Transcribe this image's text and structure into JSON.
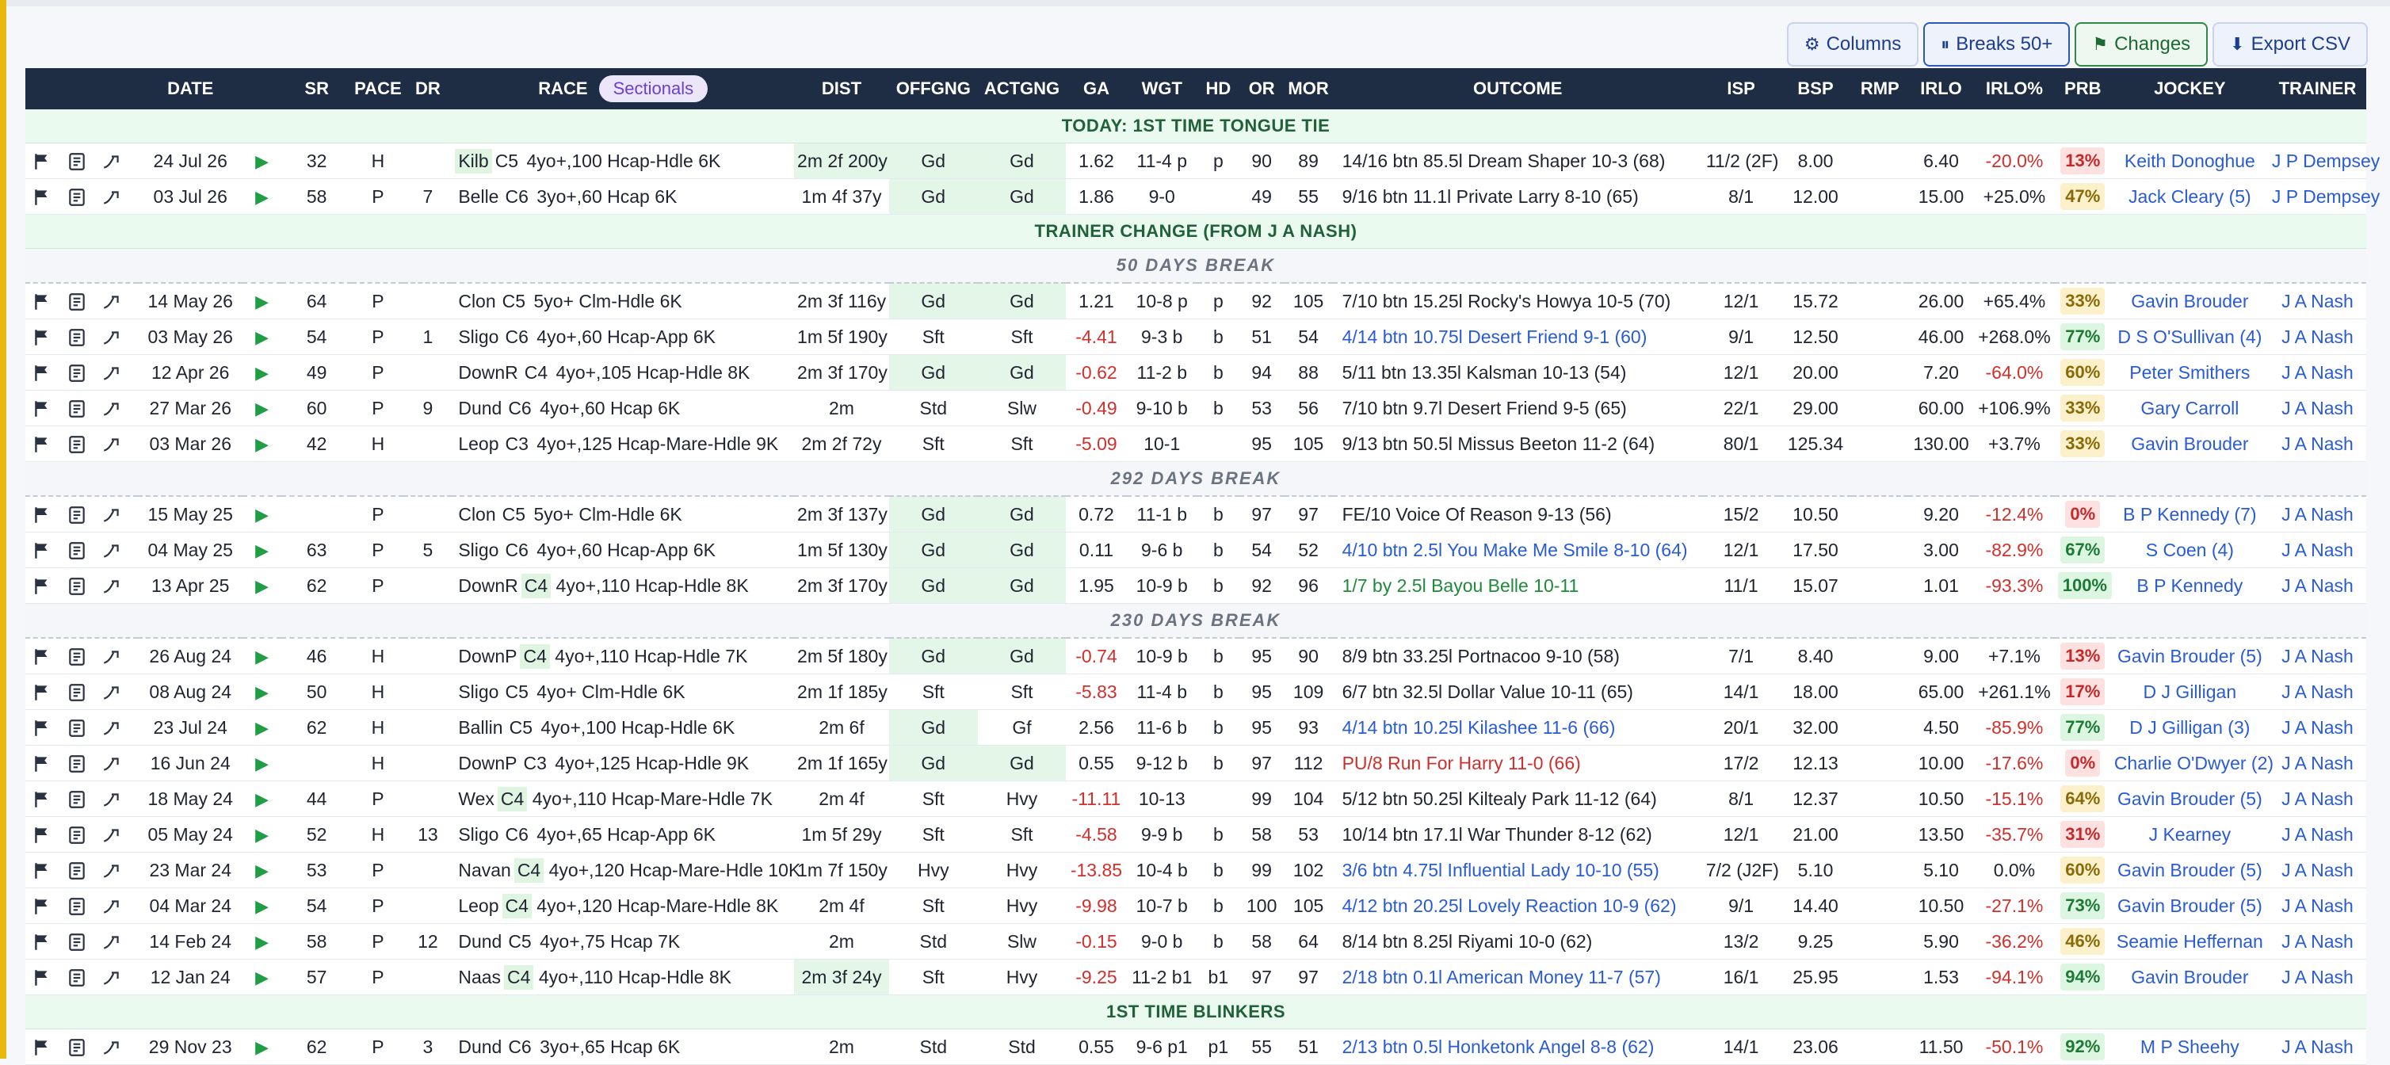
{
  "toolbar": {
    "columns": "Columns",
    "breaks": "Breaks 50+",
    "changes": "Changes",
    "export": "Export CSV"
  },
  "headers": {
    "date": "DATE",
    "sr": "SR",
    "pace": "PACE",
    "dr": "DR",
    "race": "RACE",
    "sectionals": "Sectionals",
    "dist": "DIST",
    "offgng": "OFFGNG",
    "actgng": "ACTGNG",
    "ga": "GA",
    "wgt": "WGT",
    "hd": "HD",
    "or": "OR",
    "mor": "MOR",
    "outcome": "OUTCOME",
    "isp": "ISP",
    "bsp": "BSP",
    "rmp": "RMP",
    "irlo": "IRLO",
    "irlo_pct": "IRLO%",
    "prb": "PRB",
    "jockey": "JOCKEY",
    "trainer": "TRAINER"
  },
  "rows": [
    {
      "kind": "note",
      "text": "TODAY: 1ST TIME TONGUE TIE"
    },
    {
      "kind": "race",
      "date": "24 Jul 26",
      "sr": "32",
      "pace": "H",
      "dr": "",
      "course": "Kilb",
      "cls": "C5",
      "race": "4yo+,100 Hcap-Hdle 6K",
      "course_hl": true,
      "cls_hl": false,
      "dist": "2m 2f 200y",
      "dist_hl": true,
      "off": "Gd",
      "off_hl": true,
      "act": "Gd",
      "act_hl": true,
      "ga": "1.62",
      "ga_neg": false,
      "wgt": "11-4 p",
      "hd": "p",
      "or": "90",
      "mor": "89",
      "outcome": "14/16 btn 85.5l Dream Shaper 10-3 (68)",
      "oc": "plain",
      "isp": "11/2 (2F)",
      "bsp": "8.00",
      "rmp": "",
      "irlo": "6.40",
      "irlo_pct": "-20.0%",
      "irlo_neg": true,
      "prb": "13%",
      "prb_c": "red",
      "jockey": "Keith Donoghue",
      "trainer": "J P Dempsey"
    },
    {
      "kind": "race",
      "date": "03 Jul 26",
      "sr": "58",
      "pace": "P",
      "dr": "7",
      "course": "Belle",
      "cls": "C6",
      "race": "3yo+,60 Hcap 6K",
      "course_hl": false,
      "cls_hl": false,
      "dist": "1m 4f 37y",
      "dist_hl": false,
      "off": "Gd",
      "off_hl": true,
      "act": "Gd",
      "act_hl": true,
      "ga": "1.86",
      "ga_neg": false,
      "wgt": "9-0",
      "hd": "",
      "or": "49",
      "mor": "55",
      "outcome": "9/16 btn 11.1l Private Larry 8-10 (65)",
      "oc": "plain",
      "isp": "8/1",
      "bsp": "12.00",
      "rmp": "",
      "irlo": "15.00",
      "irlo_pct": "+25.0%",
      "irlo_neg": false,
      "prb": "47%",
      "prb_c": "yel",
      "jockey": "Jack Cleary (5)",
      "trainer": "J P Dempsey"
    },
    {
      "kind": "note",
      "text": "TRAINER CHANGE (FROM J A NASH)"
    },
    {
      "kind": "break",
      "text": "50 DAYS BREAK"
    },
    {
      "kind": "race",
      "dash": true,
      "date": "14 May 26",
      "sr": "64",
      "pace": "P",
      "dr": "",
      "course": "Clon",
      "cls": "C5",
      "race": "5yo+ Clm-Hdle 6K",
      "course_hl": false,
      "cls_hl": false,
      "dist": "2m 3f 116y",
      "dist_hl": false,
      "off": "Gd",
      "off_hl": true,
      "act": "Gd",
      "act_hl": true,
      "ga": "1.21",
      "ga_neg": false,
      "wgt": "10-8 p",
      "hd": "p",
      "or": "92",
      "mor": "105",
      "outcome": "7/10 btn 15.25l Rocky's Howya 10-5 (70)",
      "oc": "plain",
      "isp": "12/1",
      "bsp": "15.72",
      "rmp": "",
      "irlo": "26.00",
      "irlo_pct": "+65.4%",
      "irlo_neg": false,
      "prb": "33%",
      "prb_c": "yel",
      "jockey": "Gavin Brouder",
      "trainer": "J A Nash"
    },
    {
      "kind": "race",
      "date": "03 May 26",
      "sr": "54",
      "pace": "P",
      "dr": "1",
      "course": "Sligo",
      "cls": "C6",
      "race": "4yo+,60 Hcap-App 6K",
      "course_hl": false,
      "cls_hl": false,
      "dist": "1m 5f 190y",
      "dist_hl": false,
      "off": "Sft",
      "off_hl": false,
      "act": "Sft",
      "act_hl": false,
      "ga": "-4.41",
      "ga_neg": true,
      "wgt": "9-3 b",
      "hd": "b",
      "or": "51",
      "mor": "54",
      "outcome": "4/14 btn 10.75l Desert Friend 9-1 (60)",
      "oc": "blue",
      "isp": "9/1",
      "bsp": "12.50",
      "rmp": "",
      "irlo": "46.00",
      "irlo_pct": "+268.0%",
      "irlo_neg": false,
      "prb": "77%",
      "prb_c": "grn",
      "jockey": "D S O'Sullivan (4)",
      "trainer": "J A Nash"
    },
    {
      "kind": "race",
      "date": "12 Apr 26",
      "sr": "49",
      "pace": "P",
      "dr": "",
      "course": "DownR",
      "cls": "C4",
      "race": "4yo+,105 Hcap-Hdle 8K",
      "course_hl": false,
      "cls_hl": false,
      "dist": "2m 3f 170y",
      "dist_hl": false,
      "off": "Gd",
      "off_hl": true,
      "act": "Gd",
      "act_hl": true,
      "ga": "-0.62",
      "ga_neg": true,
      "wgt": "11-2 b",
      "hd": "b",
      "or": "94",
      "mor": "88",
      "outcome": "5/11 btn 13.35l Kalsman 10-13 (54)",
      "oc": "plain",
      "isp": "12/1",
      "bsp": "20.00",
      "rmp": "",
      "irlo": "7.20",
      "irlo_pct": "-64.0%",
      "irlo_neg": true,
      "prb": "60%",
      "prb_c": "yel",
      "jockey": "Peter Smithers",
      "trainer": "J A Nash"
    },
    {
      "kind": "race",
      "date": "27 Mar 26",
      "sr": "60",
      "pace": "P",
      "dr": "9",
      "course": "Dund",
      "cls": "C6",
      "race": "4yo+,60 Hcap 6K",
      "course_hl": false,
      "cls_hl": false,
      "dist": "2m",
      "dist_hl": false,
      "off": "Std",
      "off_hl": false,
      "act": "Slw",
      "act_hl": false,
      "ga": "-0.49",
      "ga_neg": true,
      "wgt": "9-10 b",
      "hd": "b",
      "or": "53",
      "mor": "56",
      "outcome": "7/10 btn 9.7l Desert Friend 9-5 (65)",
      "oc": "plain",
      "isp": "22/1",
      "bsp": "29.00",
      "rmp": "",
      "irlo": "60.00",
      "irlo_pct": "+106.9%",
      "irlo_neg": false,
      "prb": "33%",
      "prb_c": "yel",
      "jockey": "Gary Carroll",
      "trainer": "J A Nash"
    },
    {
      "kind": "race",
      "date": "03 Mar 26",
      "sr": "42",
      "pace": "H",
      "dr": "",
      "course": "Leop",
      "cls": "C3",
      "race": "4yo+,125 Hcap-Mare-Hdle 9K",
      "course_hl": false,
      "cls_hl": false,
      "dist": "2m 2f 72y",
      "dist_hl": false,
      "off": "Sft",
      "off_hl": false,
      "act": "Sft",
      "act_hl": false,
      "ga": "-5.09",
      "ga_neg": true,
      "wgt": "10-1",
      "hd": "",
      "or": "95",
      "mor": "105",
      "outcome": "9/13 btn 50.5l Missus Beeton 11-2 (64)",
      "oc": "plain",
      "isp": "80/1",
      "bsp": "125.34",
      "rmp": "",
      "irlo": "130.00",
      "irlo_pct": "+3.7%",
      "irlo_neg": false,
      "prb": "33%",
      "prb_c": "yel",
      "jockey": "Gavin Brouder",
      "trainer": "J A Nash"
    },
    {
      "kind": "break",
      "text": "292 DAYS BREAK"
    },
    {
      "kind": "race",
      "dash": true,
      "date": "15 May 25",
      "sr": "",
      "pace": "P",
      "dr": "",
      "course": "Clon",
      "cls": "C5",
      "race": "5yo+ Clm-Hdle 6K",
      "course_hl": false,
      "cls_hl": false,
      "dist": "2m 3f 137y",
      "dist_hl": false,
      "off": "Gd",
      "off_hl": true,
      "act": "Gd",
      "act_hl": true,
      "ga": "0.72",
      "ga_neg": false,
      "wgt": "11-1 b",
      "hd": "b",
      "or": "97",
      "mor": "97",
      "outcome": "FE/10 Voice Of Reason 9-13 (56)",
      "oc": "plain",
      "isp": "15/2",
      "bsp": "10.50",
      "rmp": "",
      "irlo": "9.20",
      "irlo_pct": "-12.4%",
      "irlo_neg": true,
      "prb": "0%",
      "prb_c": "red",
      "jockey": "B P Kennedy (7)",
      "trainer": "J A Nash"
    },
    {
      "kind": "race",
      "date": "04 May 25",
      "sr": "63",
      "pace": "P",
      "dr": "5",
      "course": "Sligo",
      "cls": "C6",
      "race": "4yo+,60 Hcap-App 6K",
      "course_hl": false,
      "cls_hl": false,
      "dist": "1m 5f 130y",
      "dist_hl": false,
      "off": "Gd",
      "off_hl": true,
      "act": "Gd",
      "act_hl": true,
      "ga": "0.11",
      "ga_neg": false,
      "wgt": "9-6 b",
      "hd": "b",
      "or": "54",
      "mor": "52",
      "outcome": "4/10 btn 2.5l You Make Me Smile 8-10 (64)",
      "oc": "blue",
      "isp": "12/1",
      "bsp": "17.50",
      "rmp": "",
      "irlo": "3.00",
      "irlo_pct": "-82.9%",
      "irlo_neg": true,
      "prb": "67%",
      "prb_c": "grn",
      "jockey": "S Coen (4)",
      "trainer": "J A Nash"
    },
    {
      "kind": "race",
      "date": "13 Apr 25",
      "sr": "62",
      "pace": "P",
      "dr": "",
      "course": "DownR",
      "cls": "C4",
      "race": "4yo+,110 Hcap-Hdle 8K",
      "course_hl": false,
      "cls_hl": true,
      "dist": "2m 3f 170y",
      "dist_hl": false,
      "off": "Gd",
      "off_hl": true,
      "act": "Gd",
      "act_hl": true,
      "ga": "1.95",
      "ga_neg": false,
      "wgt": "10-9 b",
      "hd": "b",
      "or": "92",
      "mor": "96",
      "outcome": "1/7 by 2.5l Bayou Belle 10-11",
      "oc": "green",
      "isp": "11/1",
      "bsp": "15.07",
      "rmp": "",
      "irlo": "1.01",
      "irlo_pct": "-93.3%",
      "irlo_neg": true,
      "prb": "100%",
      "prb_c": "grn",
      "jockey": "B P Kennedy",
      "trainer": "J A Nash"
    },
    {
      "kind": "break",
      "text": "230 DAYS BREAK"
    },
    {
      "kind": "race",
      "dash": true,
      "date": "26 Aug 24",
      "sr": "46",
      "pace": "H",
      "dr": "",
      "course": "DownP",
      "cls": "C4",
      "race": "4yo+,110 Hcap-Hdle 7K",
      "course_hl": false,
      "cls_hl": true,
      "dist": "2m 5f 180y",
      "dist_hl": false,
      "off": "Gd",
      "off_hl": true,
      "act": "Gd",
      "act_hl": true,
      "ga": "-0.74",
      "ga_neg": true,
      "wgt": "10-9 b",
      "hd": "b",
      "or": "95",
      "mor": "90",
      "outcome": "8/9 btn 33.25l Portnacoo 9-10 (58)",
      "oc": "plain",
      "isp": "7/1",
      "bsp": "8.40",
      "rmp": "",
      "irlo": "9.00",
      "irlo_pct": "+7.1%",
      "irlo_neg": false,
      "prb": "13%",
      "prb_c": "red",
      "jockey": "Gavin Brouder (5)",
      "trainer": "J A Nash"
    },
    {
      "kind": "race",
      "date": "08 Aug 24",
      "sr": "50",
      "pace": "H",
      "dr": "",
      "course": "Sligo",
      "cls": "C5",
      "race": "4yo+ Clm-Hdle 6K",
      "course_hl": false,
      "cls_hl": false,
      "dist": "2m 1f 185y",
      "dist_hl": false,
      "off": "Sft",
      "off_hl": false,
      "act": "Sft",
      "act_hl": false,
      "ga": "-5.83",
      "ga_neg": true,
      "wgt": "11-4 b",
      "hd": "b",
      "or": "95",
      "mor": "109",
      "outcome": "6/7 btn 32.5l Dollar Value 10-11 (65)",
      "oc": "plain",
      "isp": "14/1",
      "bsp": "18.00",
      "rmp": "",
      "irlo": "65.00",
      "irlo_pct": "+261.1%",
      "irlo_neg": false,
      "prb": "17%",
      "prb_c": "red",
      "jockey": "D J Gilligan",
      "trainer": "J A Nash"
    },
    {
      "kind": "race",
      "date": "23 Jul 24",
      "sr": "62",
      "pace": "H",
      "dr": "",
      "course": "Ballin",
      "cls": "C5",
      "race": "4yo+,100 Hcap-Hdle 6K",
      "course_hl": false,
      "cls_hl": false,
      "dist": "2m 6f",
      "dist_hl": false,
      "off": "Gd",
      "off_hl": true,
      "act": "Gf",
      "act_hl": false,
      "ga": "2.56",
      "ga_neg": false,
      "wgt": "11-6 b",
      "hd": "b",
      "or": "95",
      "mor": "93",
      "outcome": "4/14 btn 10.25l Kilashee 11-6 (66)",
      "oc": "blue",
      "isp": "20/1",
      "bsp": "32.00",
      "rmp": "",
      "irlo": "4.50",
      "irlo_pct": "-85.9%",
      "irlo_neg": true,
      "prb": "77%",
      "prb_c": "grn",
      "jockey": "D J Gilligan (3)",
      "trainer": "J A Nash"
    },
    {
      "kind": "race",
      "date": "16 Jun 24",
      "sr": "",
      "pace": "H",
      "dr": "",
      "course": "DownP",
      "cls": "C3",
      "race": "4yo+,125 Hcap-Hdle 9K",
      "course_hl": false,
      "cls_hl": false,
      "dist": "2m 1f 165y",
      "dist_hl": false,
      "off": "Gd",
      "off_hl": true,
      "act": "Gd",
      "act_hl": true,
      "ga": "0.55",
      "ga_neg": false,
      "wgt": "9-12 b",
      "hd": "b",
      "or": "97",
      "mor": "112",
      "outcome": "PU/8 Run For Harry 11-0 (66)",
      "oc": "red",
      "isp": "17/2",
      "bsp": "12.13",
      "rmp": "",
      "irlo": "10.00",
      "irlo_pct": "-17.6%",
      "irlo_neg": true,
      "prb": "0%",
      "prb_c": "red",
      "jockey": "Charlie O'Dwyer (2)",
      "trainer": "J A Nash"
    },
    {
      "kind": "race",
      "date": "18 May 24",
      "sr": "44",
      "pace": "P",
      "dr": "",
      "course": "Wex",
      "cls": "C4",
      "race": "4yo+,110 Hcap-Mare-Hdle 7K",
      "course_hl": false,
      "cls_hl": true,
      "dist": "2m 4f",
      "dist_hl": false,
      "off": "Sft",
      "off_hl": false,
      "act": "Hvy",
      "act_hl": false,
      "ga": "-11.11",
      "ga_neg": true,
      "wgt": "10-13",
      "hd": "",
      "or": "99",
      "mor": "104",
      "outcome": "5/12 btn 50.25l Kiltealy Park 11-12 (64)",
      "oc": "plain",
      "isp": "8/1",
      "bsp": "12.37",
      "rmp": "",
      "irlo": "10.50",
      "irlo_pct": "-15.1%",
      "irlo_neg": true,
      "prb": "64%",
      "prb_c": "yel",
      "jockey": "Gavin Brouder (5)",
      "trainer": "J A Nash"
    },
    {
      "kind": "race",
      "date": "05 May 24",
      "sr": "52",
      "pace": "H",
      "dr": "13",
      "course": "Sligo",
      "cls": "C6",
      "race": "4yo+,65 Hcap-App 6K",
      "course_hl": false,
      "cls_hl": false,
      "dist": "1m 5f 29y",
      "dist_hl": false,
      "off": "Sft",
      "off_hl": false,
      "act": "Sft",
      "act_hl": false,
      "ga": "-4.58",
      "ga_neg": true,
      "wgt": "9-9 b",
      "hd": "b",
      "or": "58",
      "mor": "53",
      "outcome": "10/14 btn 17.1l War Thunder 8-12 (62)",
      "oc": "plain",
      "isp": "12/1",
      "bsp": "21.00",
      "rmp": "",
      "irlo": "13.50",
      "irlo_pct": "-35.7%",
      "irlo_neg": true,
      "prb": "31%",
      "prb_c": "red",
      "jockey": "J Kearney",
      "trainer": "J A Nash"
    },
    {
      "kind": "race",
      "date": "23 Mar 24",
      "sr": "53",
      "pace": "P",
      "dr": "",
      "course": "Navan",
      "cls": "C4",
      "race": "4yo+,120 Hcap-Mare-Hdle 10K",
      "course_hl": false,
      "cls_hl": true,
      "dist": "1m 7f 150y",
      "dist_hl": false,
      "off": "Hvy",
      "off_hl": false,
      "act": "Hvy",
      "act_hl": false,
      "ga": "-13.85",
      "ga_neg": true,
      "wgt": "10-4 b",
      "hd": "b",
      "or": "99",
      "mor": "102",
      "outcome": "3/6 btn 4.75l Influential Lady 10-10 (55)",
      "oc": "blue",
      "isp": "7/2 (J2F)",
      "bsp": "5.10",
      "rmp": "",
      "irlo": "5.10",
      "irlo_pct": "0.0%",
      "irlo_neg": false,
      "prb": "60%",
      "prb_c": "yel",
      "jockey": "Gavin Brouder (5)",
      "trainer": "J A Nash"
    },
    {
      "kind": "race",
      "date": "04 Mar 24",
      "sr": "54",
      "pace": "P",
      "dr": "",
      "course": "Leop",
      "cls": "C4",
      "race": "4yo+,120 Hcap-Mare-Hdle 8K",
      "course_hl": false,
      "cls_hl": true,
      "dist": "2m 4f",
      "dist_hl": false,
      "off": "Sft",
      "off_hl": false,
      "act": "Hvy",
      "act_hl": false,
      "ga": "-9.98",
      "ga_neg": true,
      "wgt": "10-7 b",
      "hd": "b",
      "or": "100",
      "mor": "105",
      "outcome": "4/12 btn 20.25l Lovely Reaction 10-9 (62)",
      "oc": "blue",
      "isp": "9/1",
      "bsp": "14.40",
      "rmp": "",
      "irlo": "10.50",
      "irlo_pct": "-27.1%",
      "irlo_neg": true,
      "prb": "73%",
      "prb_c": "grn",
      "jockey": "Gavin Brouder (5)",
      "trainer": "J A Nash"
    },
    {
      "kind": "race",
      "date": "14 Feb 24",
      "sr": "58",
      "pace": "P",
      "dr": "12",
      "course": "Dund",
      "cls": "C5",
      "race": "4yo+,75 Hcap 7K",
      "course_hl": false,
      "cls_hl": false,
      "dist": "2m",
      "dist_hl": false,
      "off": "Std",
      "off_hl": false,
      "act": "Slw",
      "act_hl": false,
      "ga": "-0.15",
      "ga_neg": true,
      "wgt": "9-0 b",
      "hd": "b",
      "or": "58",
      "mor": "64",
      "outcome": "8/14 btn 8.25l Riyami 10-0 (62)",
      "oc": "plain",
      "isp": "13/2",
      "bsp": "9.25",
      "rmp": "",
      "irlo": "5.90",
      "irlo_pct": "-36.2%",
      "irlo_neg": true,
      "prb": "46%",
      "prb_c": "yel",
      "jockey": "Seamie Heffernan",
      "trainer": "J A Nash"
    },
    {
      "kind": "race",
      "date": "12 Jan 24",
      "sr": "57",
      "pace": "P",
      "dr": "",
      "course": "Naas",
      "cls": "C4",
      "race": "4yo+,110 Hcap-Hdle 8K",
      "course_hl": false,
      "cls_hl": true,
      "dist": "2m 3f 24y",
      "dist_hl": true,
      "off": "Sft",
      "off_hl": false,
      "act": "Hvy",
      "act_hl": false,
      "ga": "-9.25",
      "ga_neg": true,
      "wgt": "11-2 b1",
      "hd": "b1",
      "or": "97",
      "mor": "97",
      "outcome": "2/18 btn 0.1l American Money 11-7 (57)",
      "oc": "blue",
      "isp": "16/1",
      "bsp": "25.95",
      "rmp": "",
      "irlo": "1.53",
      "irlo_pct": "-94.1%",
      "irlo_neg": true,
      "prb": "94%",
      "prb_c": "grn",
      "jockey": "Gavin Brouder",
      "trainer": "J A Nash"
    },
    {
      "kind": "note",
      "text": "1ST TIME BLINKERS"
    },
    {
      "kind": "race",
      "date": "29 Nov 23",
      "sr": "62",
      "pace": "P",
      "dr": "3",
      "course": "Dund",
      "cls": "C6",
      "race": "3yo+,65 Hcap 6K",
      "course_hl": false,
      "cls_hl": false,
      "dist": "2m",
      "dist_hl": false,
      "off": "Std",
      "off_hl": false,
      "act": "Std",
      "act_hl": false,
      "ga": "0.55",
      "ga_neg": false,
      "wgt": "9-6 p1",
      "hd": "p1",
      "or": "55",
      "mor": "51",
      "outcome": "2/13 btn 0.5l Honketonk Angel 8-8 (62)",
      "oc": "blue",
      "isp": "14/1",
      "bsp": "23.06",
      "rmp": "",
      "irlo": "11.50",
      "irlo_pct": "-50.1%",
      "irlo_neg": true,
      "prb": "92%",
      "prb_c": "grn",
      "jockey": "M P Sheehy",
      "trainer": "J A Nash"
    }
  ]
}
